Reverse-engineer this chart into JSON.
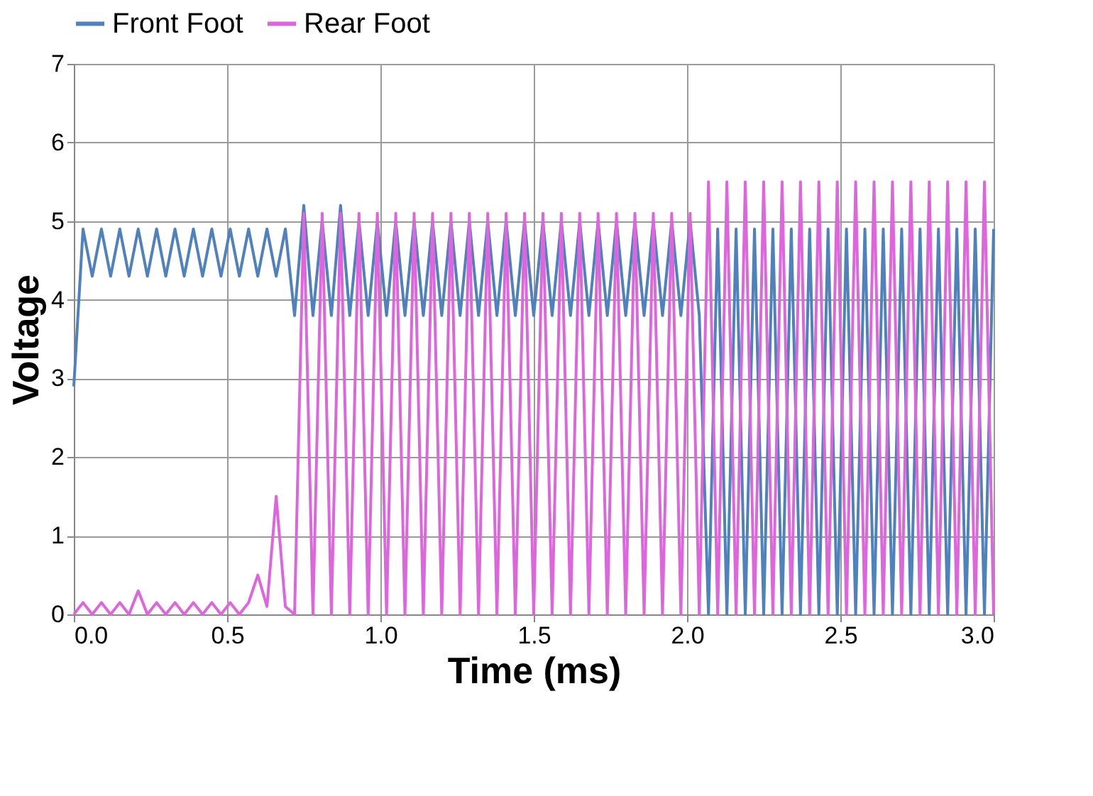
{
  "chart_data": {
    "type": "line",
    "xlabel": "Time (ms)",
    "ylabel": "Voltage",
    "x": [
      0,
      0.03,
      0.06,
      0.09,
      0.12,
      0.15,
      0.18,
      0.21,
      0.24,
      0.27,
      0.3,
      0.33,
      0.36,
      0.39,
      0.42,
      0.45,
      0.48,
      0.51,
      0.54,
      0.57,
      0.6,
      0.63,
      0.66,
      0.69,
      0.72,
      0.75,
      0.78,
      0.81,
      0.84,
      0.87,
      0.9,
      0.93,
      0.96,
      0.99,
      1.02,
      1.05,
      1.08,
      1.11,
      1.14,
      1.17,
      1.2,
      1.23,
      1.26,
      1.29,
      1.32,
      1.35,
      1.38,
      1.41,
      1.44,
      1.47,
      1.5,
      1.53,
      1.56,
      1.59,
      1.62,
      1.65,
      1.68,
      1.71,
      1.74,
      1.77,
      1.8,
      1.83,
      1.86,
      1.89,
      1.92,
      1.95,
      1.98,
      2.01,
      2.04,
      2.07,
      2.1,
      2.13,
      2.16,
      2.19,
      2.22,
      2.25,
      2.28,
      2.31,
      2.34,
      2.37,
      2.4,
      2.43,
      2.46,
      2.49,
      2.52,
      2.55,
      2.58,
      2.61,
      2.64,
      2.67,
      2.7,
      2.73,
      2.76,
      2.79,
      2.82,
      2.85,
      2.88,
      2.91,
      2.94,
      2.97,
      3.0
    ],
    "series": [
      {
        "name": "Front Foot",
        "color": "#4f81bd",
        "values": [
          2.9,
          4.9,
          4.3,
          4.9,
          4.3,
          4.9,
          4.3,
          4.9,
          4.3,
          4.9,
          4.3,
          4.9,
          4.3,
          4.9,
          4.3,
          4.9,
          4.3,
          4.9,
          4.3,
          4.9,
          4.3,
          4.9,
          4.3,
          4.9,
          3.8,
          5.2,
          3.8,
          5.0,
          3.8,
          5.2,
          3.8,
          5.0,
          3.8,
          5.0,
          3.8,
          5.0,
          3.8,
          5.0,
          3.8,
          5.0,
          3.8,
          5.0,
          3.8,
          5.0,
          3.8,
          5.0,
          3.8,
          5.0,
          3.8,
          5.0,
          3.8,
          5.0,
          3.8,
          5.0,
          3.8,
          5.0,
          3.8,
          5.0,
          3.8,
          5.0,
          3.8,
          5.0,
          3.8,
          5.0,
          3.8,
          5.0,
          3.8,
          5.0,
          3.8,
          0,
          4.9,
          0,
          4.9,
          0,
          4.9,
          0,
          4.9,
          0,
          4.9,
          0,
          4.9,
          0,
          4.9,
          0,
          4.9,
          0,
          4.9,
          0,
          4.9,
          0,
          4.9,
          0,
          4.9,
          0,
          4.9,
          0,
          4.9,
          0,
          4.9,
          0,
          4.9
        ]
      },
      {
        "name": "Rear Foot",
        "color": "#dd66dd",
        "values": [
          0,
          0.15,
          0,
          0.15,
          0,
          0.15,
          0,
          0.3,
          0,
          0.15,
          0,
          0.15,
          0,
          0.15,
          0,
          0.15,
          0,
          0.15,
          0,
          0.15,
          0.5,
          0.1,
          1.5,
          0.1,
          0,
          5.1,
          0,
          5.1,
          0,
          5.1,
          0,
          5.1,
          0,
          5.1,
          0,
          5.1,
          0,
          5.1,
          0,
          5.1,
          0,
          5.1,
          0,
          5.1,
          0,
          5.1,
          0,
          5.1,
          0,
          5.1,
          0,
          5.1,
          0,
          5.1,
          0,
          5.1,
          0,
          5.1,
          0,
          5.1,
          0,
          5.1,
          0,
          5.1,
          0,
          5.1,
          0,
          5.1,
          0,
          5.5,
          0,
          5.5,
          0,
          5.5,
          0,
          5.5,
          0,
          5.5,
          0,
          5.5,
          0,
          5.5,
          0,
          5.5,
          0,
          5.5,
          0,
          5.5,
          0,
          5.5,
          0,
          5.5,
          0,
          5.5,
          0,
          5.5,
          0,
          5.5,
          0,
          5.5,
          0
        ]
      }
    ],
    "xlim": [
      0,
      3
    ],
    "xticks": [
      {
        "value": 0,
        "label": "0.0"
      },
      0.5,
      {
        "value": 1,
        "label": "1.0"
      },
      1.5,
      {
        "value": 2,
        "label": "2.0"
      },
      2.5,
      {
        "value": 3,
        "label": "3.0"
      }
    ],
    "ylim": [
      0,
      7
    ],
    "yticks": [
      0,
      1,
      2,
      3,
      4,
      5,
      6,
      7
    ],
    "grid": true,
    "legend": "top"
  }
}
